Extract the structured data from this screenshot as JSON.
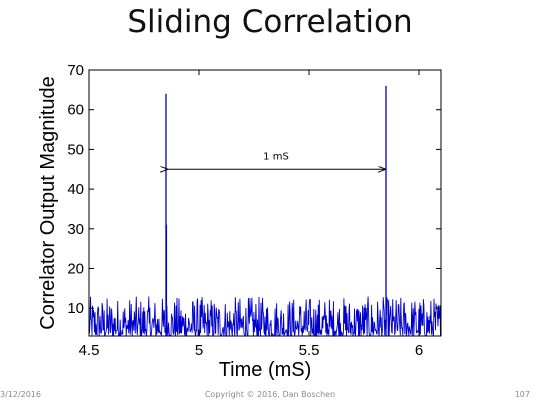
{
  "slide": {
    "title": "Sliding Correlation",
    "footer_date": "3/12/2016",
    "footer_copyright": "Copyright © 2016, Dan Boschen",
    "footer_page": "107"
  },
  "chart_data": {
    "type": "line",
    "title": "",
    "xlabel": "Time (mS)",
    "ylabel": "Correlator Output Magnitude",
    "xlim": [
      4.5,
      6.1
    ],
    "ylim": [
      3,
      70
    ],
    "xticks": [
      4.5,
      5,
      5.5,
      6
    ],
    "xtick_labels": [
      "4.5",
      "5",
      "5.5",
      "6"
    ],
    "yticks": [
      10,
      20,
      30,
      40,
      50,
      60,
      70
    ],
    "ytick_labels": [
      "10",
      "20",
      "30",
      "40",
      "50",
      "60",
      "70"
    ],
    "grid": false,
    "legend": "none",
    "line_color": "#0000cc",
    "noise_floor_max": 13,
    "peaks": [
      {
        "x": 4.85,
        "y": 64
      },
      {
        "x": 4.852,
        "y": 31
      },
      {
        "x": 5.85,
        "y": 66
      }
    ],
    "annotation": {
      "text": "1 mS",
      "x_start": 4.85,
      "x_end": 5.85,
      "y": 45,
      "arrow": "double"
    }
  }
}
